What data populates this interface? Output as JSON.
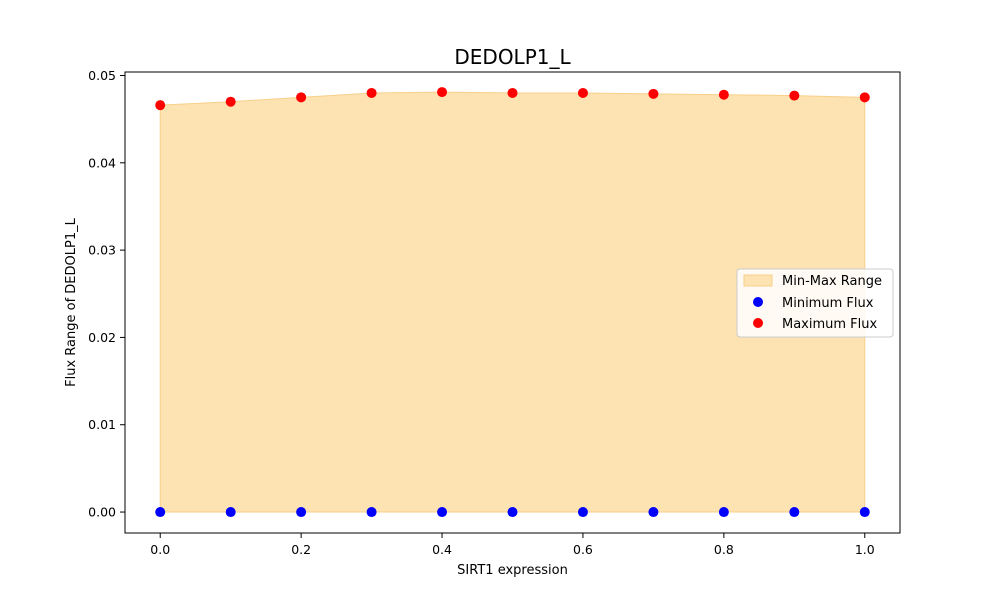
{
  "chart_data": {
    "type": "scatter",
    "title": "DEDOLP1_L",
    "xlabel": "SIRT1 expression",
    "ylabel": "Flux Range of DEDOLP1_L",
    "xlim": [
      -0.05,
      1.05
    ],
    "ylim": [
      -0.0024,
      0.0504
    ],
    "x": [
      0.0,
      0.1,
      0.2,
      0.3,
      0.4,
      0.5,
      0.6,
      0.7,
      0.8,
      0.9,
      1.0
    ],
    "xticks": [
      "0.0",
      "0.2",
      "0.4",
      "0.6",
      "0.8",
      "1.0"
    ],
    "yticks": [
      "0.00",
      "0.01",
      "0.02",
      "0.03",
      "0.04",
      "0.05"
    ],
    "series": [
      {
        "name": "Minimum Flux",
        "color": "#0000ff",
        "values": [
          0.0,
          0.0,
          0.0,
          0.0,
          0.0,
          0.0,
          0.0,
          0.0,
          0.0,
          0.0,
          0.0
        ]
      },
      {
        "name": "Maximum Flux",
        "color": "#ff0000",
        "values": [
          0.0466,
          0.047,
          0.0475,
          0.048,
          0.0481,
          0.048,
          0.048,
          0.0479,
          0.0478,
          0.0477,
          0.0475
        ]
      }
    ],
    "fill": {
      "name": "Min-Max Range",
      "color": "#fde2b2",
      "edge_color": "#f8d08a"
    },
    "legend": {
      "position": "center-right",
      "entries": [
        "Min-Max Range",
        "Minimum Flux",
        "Maximum Flux"
      ]
    },
    "grid": false
  }
}
